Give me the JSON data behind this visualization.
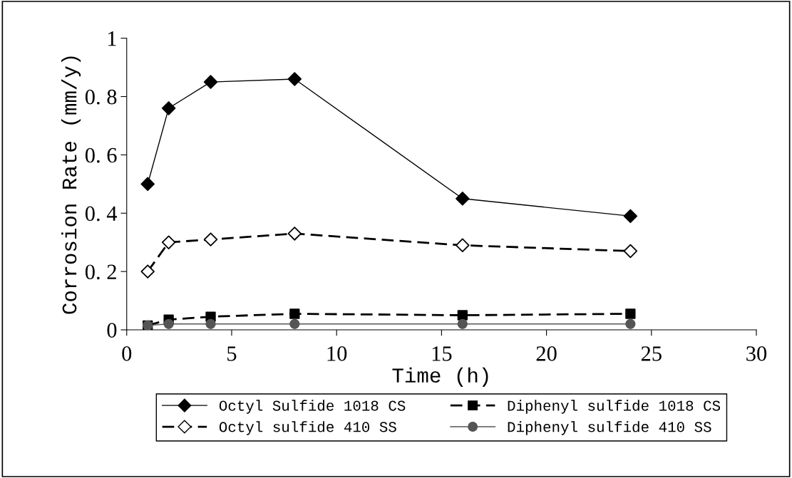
{
  "chart_data": {
    "type": "line",
    "xlabel": "Time (h)",
    "ylabel": "Corrosion Rate (mm/y)",
    "x": [
      1,
      2,
      4,
      8,
      16,
      24
    ],
    "xlim": [
      0,
      30
    ],
    "xticks": [
      0,
      5,
      10,
      15,
      20,
      25,
      30
    ],
    "ylim": [
      0,
      1
    ],
    "yticks": [
      0,
      {
        "value": 0.2,
        "label": "0. 2"
      },
      {
        "value": 0.4,
        "label": "0. 4"
      },
      {
        "value": 0.6,
        "label": "0. 6"
      },
      {
        "value": 0.8,
        "label": "0. 8"
      },
      1
    ],
    "grid": false,
    "legend": "bottom",
    "series": [
      {
        "name": "Octyl Sulfide 1018 CS",
        "color": "#000000",
        "marker": "diamond",
        "line_style": "solid",
        "values": [
          0.5,
          0.76,
          0.85,
          0.86,
          0.45,
          0.39
        ]
      },
      {
        "name": "Octyl sulfide 410 SS",
        "color": "#000000",
        "marker": "diamond",
        "colors": [
          "#ffffff",
          "#ffffff",
          "#ffffff",
          "#ffffff",
          "#ffffff",
          "#ffffff"
        ],
        "line_style": "dashed",
        "values": [
          0.2,
          0.3,
          0.31,
          0.33,
          0.29,
          0.27
        ]
      },
      {
        "name": "Diphenyl sulfide 1018 CS",
        "color": "#000000",
        "marker": "square",
        "line_style": "dashed",
        "values": [
          0.015,
          0.035,
          0.045,
          0.055,
          0.05,
          0.055
        ]
      },
      {
        "name": "Diphenyl sulfide 410 SS",
        "color": "#555555",
        "marker": "circle",
        "line_style": "solid",
        "values": [
          0.015,
          0.02,
          0.02,
          0.02,
          0.02,
          0.02
        ]
      }
    ]
  }
}
